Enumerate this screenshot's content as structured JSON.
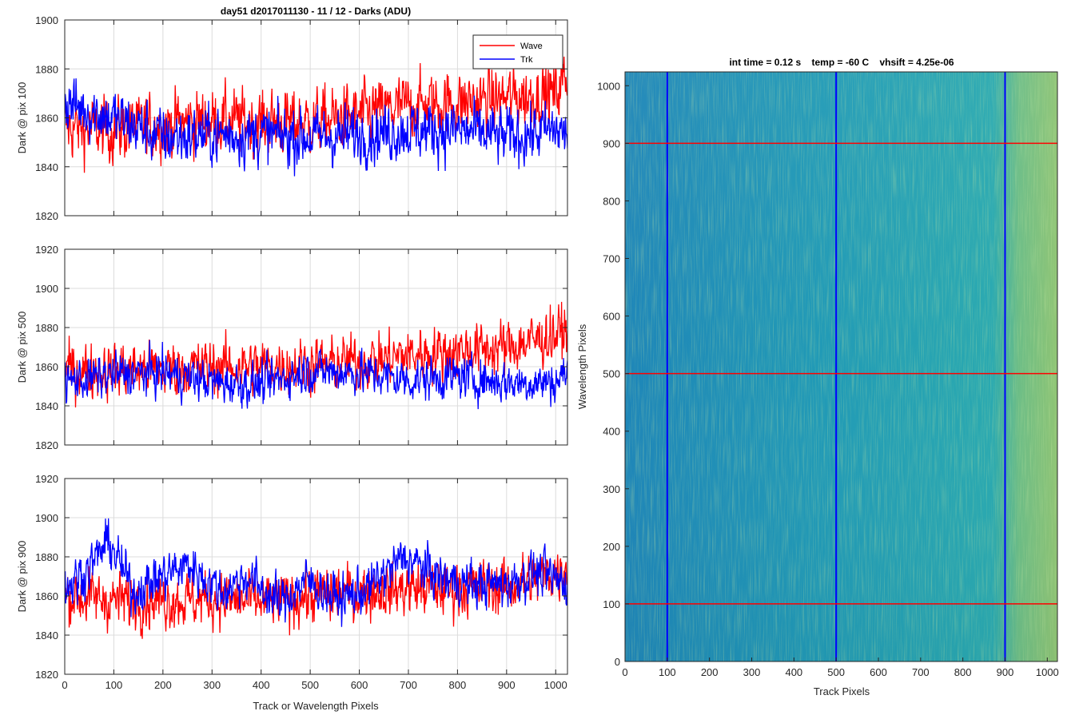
{
  "figure": {
    "title": "day51 d2017011130 - 11 / 12 - Darks (ADU)",
    "xlabel": "Track or Wavelength Pixels"
  },
  "colors": {
    "wave": "#ff0000",
    "trk": "#0000ff",
    "grid": "#dcdcdc",
    "axes": "#262626",
    "heatmap_low": "#1a7ab8",
    "heatmap_mid": "#26a6b4",
    "heatmap_high": "#9cc66a"
  },
  "chart_data": [
    {
      "type": "line",
      "ylabel": "Dark @ pix 100",
      "xlim": [
        0,
        1024
      ],
      "ylim": [
        1820,
        1900
      ],
      "xticks": [
        0,
        100,
        200,
        300,
        400,
        500,
        600,
        700,
        800,
        900,
        1000
      ],
      "yticks": [
        1820,
        1840,
        1860,
        1880,
        1900
      ],
      "legend": {
        "placement": "top-right",
        "entries": [
          "Wave",
          "Trk"
        ]
      },
      "grid": true,
      "series": [
        {
          "name": "Wave",
          "color": "#ff0000",
          "x": [
            0,
            100,
            200,
            300,
            400,
            500,
            600,
            700,
            800,
            900,
            1000,
            1024
          ],
          "y": [
            1856,
            1855,
            1857,
            1859,
            1858,
            1858,
            1861,
            1865,
            1866,
            1868,
            1870,
            1878
          ]
        },
        {
          "name": "Trk",
          "color": "#0000ff",
          "x": [
            0,
            100,
            200,
            300,
            400,
            500,
            600,
            700,
            800,
            900,
            1000,
            1024
          ],
          "y": [
            1866,
            1860,
            1852,
            1853,
            1853,
            1852,
            1853,
            1855,
            1855,
            1852,
            1855,
            1853
          ]
        }
      ]
    },
    {
      "type": "line",
      "ylabel": "Dark @ pix 500",
      "xlim": [
        0,
        1024
      ],
      "ylim": [
        1820,
        1920
      ],
      "xticks": [
        0,
        100,
        200,
        300,
        400,
        500,
        600,
        700,
        800,
        900,
        1000
      ],
      "yticks": [
        1820,
        1840,
        1860,
        1880,
        1900,
        1920
      ],
      "grid": true,
      "series": [
        {
          "name": "Wave",
          "color": "#ff0000",
          "x": [
            0,
            100,
            200,
            300,
            400,
            500,
            600,
            700,
            800,
            900,
            1000,
            1024
          ],
          "y": [
            1858,
            1858,
            1859,
            1860,
            1860,
            1861,
            1862,
            1866,
            1868,
            1870,
            1876,
            1880
          ]
        },
        {
          "name": "Trk",
          "color": "#0000ff",
          "x": [
            0,
            100,
            200,
            300,
            400,
            500,
            600,
            700,
            800,
            900,
            1000,
            1024
          ],
          "y": [
            1852,
            1856,
            1857,
            1852,
            1851,
            1858,
            1857,
            1853,
            1855,
            1852,
            1852,
            1858
          ]
        }
      ]
    },
    {
      "type": "line",
      "ylabel": "Dark @ pix 900",
      "xlabel": "Track or Wavelength Pixels",
      "xlim": [
        0,
        1024
      ],
      "ylim": [
        1820,
        1920
      ],
      "xticks": [
        0,
        100,
        200,
        300,
        400,
        500,
        600,
        700,
        800,
        900,
        1000
      ],
      "yticks": [
        1820,
        1840,
        1860,
        1880,
        1900,
        1920
      ],
      "grid": true,
      "series": [
        {
          "name": "Wave",
          "color": "#ff0000",
          "x": [
            0,
            100,
            200,
            300,
            400,
            500,
            600,
            700,
            800,
            900,
            1000,
            1024
          ],
          "y": [
            1860,
            1858,
            1858,
            1858,
            1857,
            1860,
            1862,
            1864,
            1864,
            1865,
            1872,
            1876
          ]
        },
        {
          "name": "Trk",
          "color": "#0000ff",
          "x": [
            0,
            40,
            90,
            140,
            180,
            250,
            320,
            370,
            440,
            490,
            560,
            620,
            690,
            760,
            820,
            900,
            960,
            1024
          ],
          "y": [
            1864,
            1872,
            1888,
            1862,
            1868,
            1876,
            1862,
            1870,
            1856,
            1868,
            1858,
            1864,
            1880,
            1870,
            1866,
            1866,
            1872,
            1866
          ]
        }
      ]
    },
    {
      "type": "heatmap",
      "title": "int time = 0.12 s    temp = -60 C    vhsift = 4.25e-06",
      "xlabel": "Track Pixels",
      "ylabel": "Wavelength Pixels",
      "xlim": [
        0,
        1024
      ],
      "ylim": [
        0,
        1024
      ],
      "xticks": [
        0,
        100,
        200,
        300,
        400,
        500,
        600,
        700,
        800,
        900,
        1000
      ],
      "yticks": [
        0,
        100,
        200,
        300,
        400,
        500,
        600,
        700,
        800,
        900,
        1000
      ],
      "vertical_lines_x": [
        100,
        500,
        900
      ],
      "horizontal_lines_y": [
        100,
        500,
        900
      ],
      "description_values": {
        "brighter_region_x_from": 900
      }
    }
  ]
}
